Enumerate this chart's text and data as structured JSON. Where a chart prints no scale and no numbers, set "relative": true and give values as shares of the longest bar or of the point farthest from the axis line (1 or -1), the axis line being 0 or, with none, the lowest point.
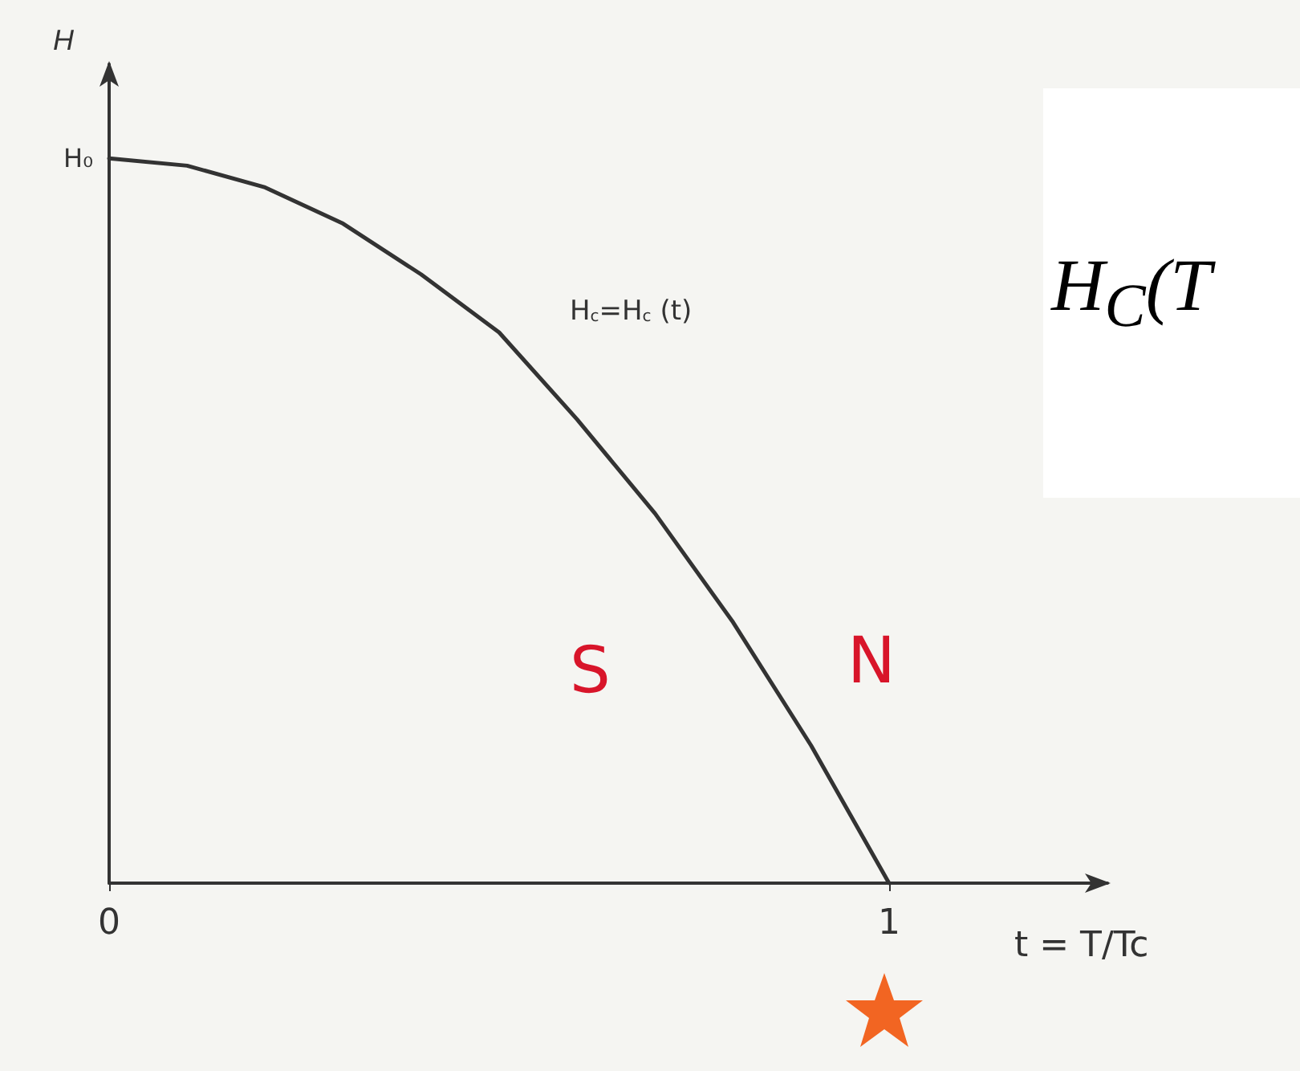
{
  "chart_data": {
    "type": "line",
    "relative": true,
    "xlabel": "t = T/Tc",
    "ylabel": "H",
    "x": [
      0,
      0.1,
      0.2,
      0.3,
      0.4,
      0.5,
      0.6,
      0.7,
      0.8,
      0.9,
      1
    ],
    "series": [
      {
        "color": "#333333",
        "values": [
          1,
          0.99,
          0.96,
          0.91,
          0.84,
          0.76,
          0.64,
          0.51,
          0.36,
          0.19,
          0
        ]
      }
    ],
    "xlim": [
      0,
      1.28
    ],
    "xticks": [
      0,
      1
    ],
    "marker": "none",
    "line_style": "solid",
    "annotations": [
      "H$_{c}$=H$_{c}$ (t)",
      "S",
      "N",
      "H$_{C}$(T",
      {
        "text": "H₀",
        "x": 0,
        "y": 1
      }
    ]
  }
}
